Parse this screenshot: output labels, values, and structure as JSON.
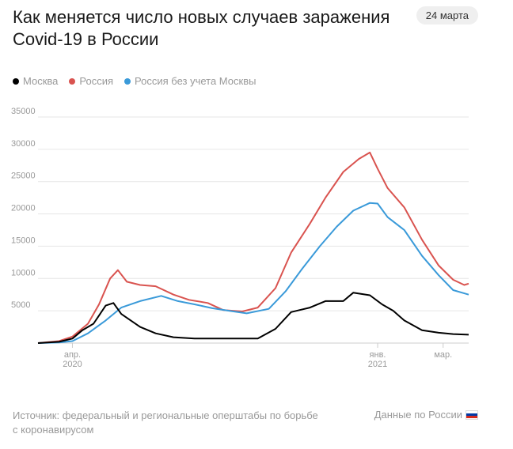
{
  "header": {
    "title": "Как меняется число новых случаев заражения Covid-19 в России",
    "date": "24 марта"
  },
  "legend": [
    {
      "label": "Москва",
      "color": "#000000"
    },
    {
      "label": "Россия",
      "color": "#d9534f"
    },
    {
      "label": "Россия без учета Москвы",
      "color": "#3a9ad9"
    }
  ],
  "footer": {
    "source": "Источник: федеральный и региональные оперштабы по борьбе с коронавирусом",
    "link": "Данные по России",
    "link_icon": "russia-flag-icon"
  },
  "chart_data": {
    "type": "line",
    "title": "Как меняется число новых случаев заражения Covid-19 в России",
    "xlabel": "",
    "ylabel": "",
    "x_start": "2020-03-01",
    "x_end": "2021-03-24",
    "ylim": [
      0,
      35000
    ],
    "y_ticks": [
      5000,
      10000,
      15000,
      20000,
      25000,
      30000,
      35000
    ],
    "x_ticks": [
      {
        "date": "2020-04-01",
        "label": [
          "апр.",
          "2020"
        ]
      },
      {
        "date": "2021-01-01",
        "label": [
          "янв.",
          "2021"
        ]
      },
      {
        "date": "2021-03-01",
        "label": [
          "мар.",
          ""
        ]
      }
    ],
    "grid": true,
    "legend_position": "top-left",
    "series": [
      {
        "name": "Россия",
        "color": "#d9534f",
        "points": [
          [
            "2020-03-01",
            0
          ],
          [
            "2020-03-20",
            300
          ],
          [
            "2020-04-01",
            1000
          ],
          [
            "2020-04-15",
            3000
          ],
          [
            "2020-04-25",
            6000
          ],
          [
            "2020-05-05",
            10000
          ],
          [
            "2020-05-12",
            11300
          ],
          [
            "2020-05-20",
            9500
          ],
          [
            "2020-06-01",
            9000
          ],
          [
            "2020-06-15",
            8800
          ],
          [
            "2020-07-01",
            7500
          ],
          [
            "2020-07-15",
            6700
          ],
          [
            "2020-08-01",
            6200
          ],
          [
            "2020-08-15",
            5100
          ],
          [
            "2020-09-01",
            4900
          ],
          [
            "2020-09-15",
            5500
          ],
          [
            "2020-10-01",
            8500
          ],
          [
            "2020-10-15",
            14000
          ],
          [
            "2020-11-01",
            18500
          ],
          [
            "2020-11-15",
            22500
          ],
          [
            "2020-12-01",
            26500
          ],
          [
            "2020-12-15",
            28500
          ],
          [
            "2020-12-25",
            29500
          ],
          [
            "2021-01-01",
            27000
          ],
          [
            "2021-01-10",
            24000
          ],
          [
            "2021-01-25",
            21000
          ],
          [
            "2021-02-10",
            16000
          ],
          [
            "2021-02-25",
            12000
          ],
          [
            "2021-03-10",
            9800
          ],
          [
            "2021-03-20",
            9000
          ],
          [
            "2021-03-24",
            9200
          ]
        ]
      },
      {
        "name": "Россия без учета Москвы",
        "color": "#3a9ad9",
        "points": [
          [
            "2020-03-01",
            0
          ],
          [
            "2020-03-20",
            100
          ],
          [
            "2020-04-01",
            300
          ],
          [
            "2020-04-15",
            1500
          ],
          [
            "2020-05-01",
            3500
          ],
          [
            "2020-05-15",
            5500
          ],
          [
            "2020-06-01",
            6500
          ],
          [
            "2020-06-20",
            7300
          ],
          [
            "2020-07-05",
            6500
          ],
          [
            "2020-07-20",
            6000
          ],
          [
            "2020-08-05",
            5400
          ],
          [
            "2020-08-20",
            5000
          ],
          [
            "2020-09-05",
            4600
          ],
          [
            "2020-09-25",
            5300
          ],
          [
            "2020-10-10",
            8000
          ],
          [
            "2020-10-25",
            11500
          ],
          [
            "2020-11-10",
            15000
          ],
          [
            "2020-11-25",
            18000
          ],
          [
            "2020-12-10",
            20500
          ],
          [
            "2020-12-25",
            21700
          ],
          [
            "2021-01-01",
            21600
          ],
          [
            "2021-01-10",
            19500
          ],
          [
            "2021-01-25",
            17500
          ],
          [
            "2021-02-10",
            13500
          ],
          [
            "2021-02-25",
            10500
          ],
          [
            "2021-03-10",
            8200
          ],
          [
            "2021-03-20",
            7700
          ],
          [
            "2021-03-24",
            7500
          ]
        ]
      },
      {
        "name": "Москва",
        "color": "#000000",
        "points": [
          [
            "2020-03-01",
            0
          ],
          [
            "2020-03-20",
            200
          ],
          [
            "2020-04-01",
            700
          ],
          [
            "2020-04-10",
            2000
          ],
          [
            "2020-04-20",
            3000
          ],
          [
            "2020-05-01",
            5800
          ],
          [
            "2020-05-08",
            6200
          ],
          [
            "2020-05-15",
            4500
          ],
          [
            "2020-06-01",
            2500
          ],
          [
            "2020-06-15",
            1500
          ],
          [
            "2020-07-01",
            900
          ],
          [
            "2020-07-20",
            700
          ],
          [
            "2020-08-15",
            700
          ],
          [
            "2020-09-15",
            700
          ],
          [
            "2020-10-01",
            2200
          ],
          [
            "2020-10-15",
            4800
          ],
          [
            "2020-11-01",
            5500
          ],
          [
            "2020-11-15",
            6500
          ],
          [
            "2020-12-01",
            6500
          ],
          [
            "2020-12-10",
            7800
          ],
          [
            "2020-12-25",
            7400
          ],
          [
            "2021-01-05",
            6000
          ],
          [
            "2021-01-15",
            5000
          ],
          [
            "2021-01-25",
            3500
          ],
          [
            "2021-02-10",
            2000
          ],
          [
            "2021-02-25",
            1600
          ],
          [
            "2021-03-10",
            1400
          ],
          [
            "2021-03-24",
            1300
          ]
        ]
      }
    ]
  }
}
